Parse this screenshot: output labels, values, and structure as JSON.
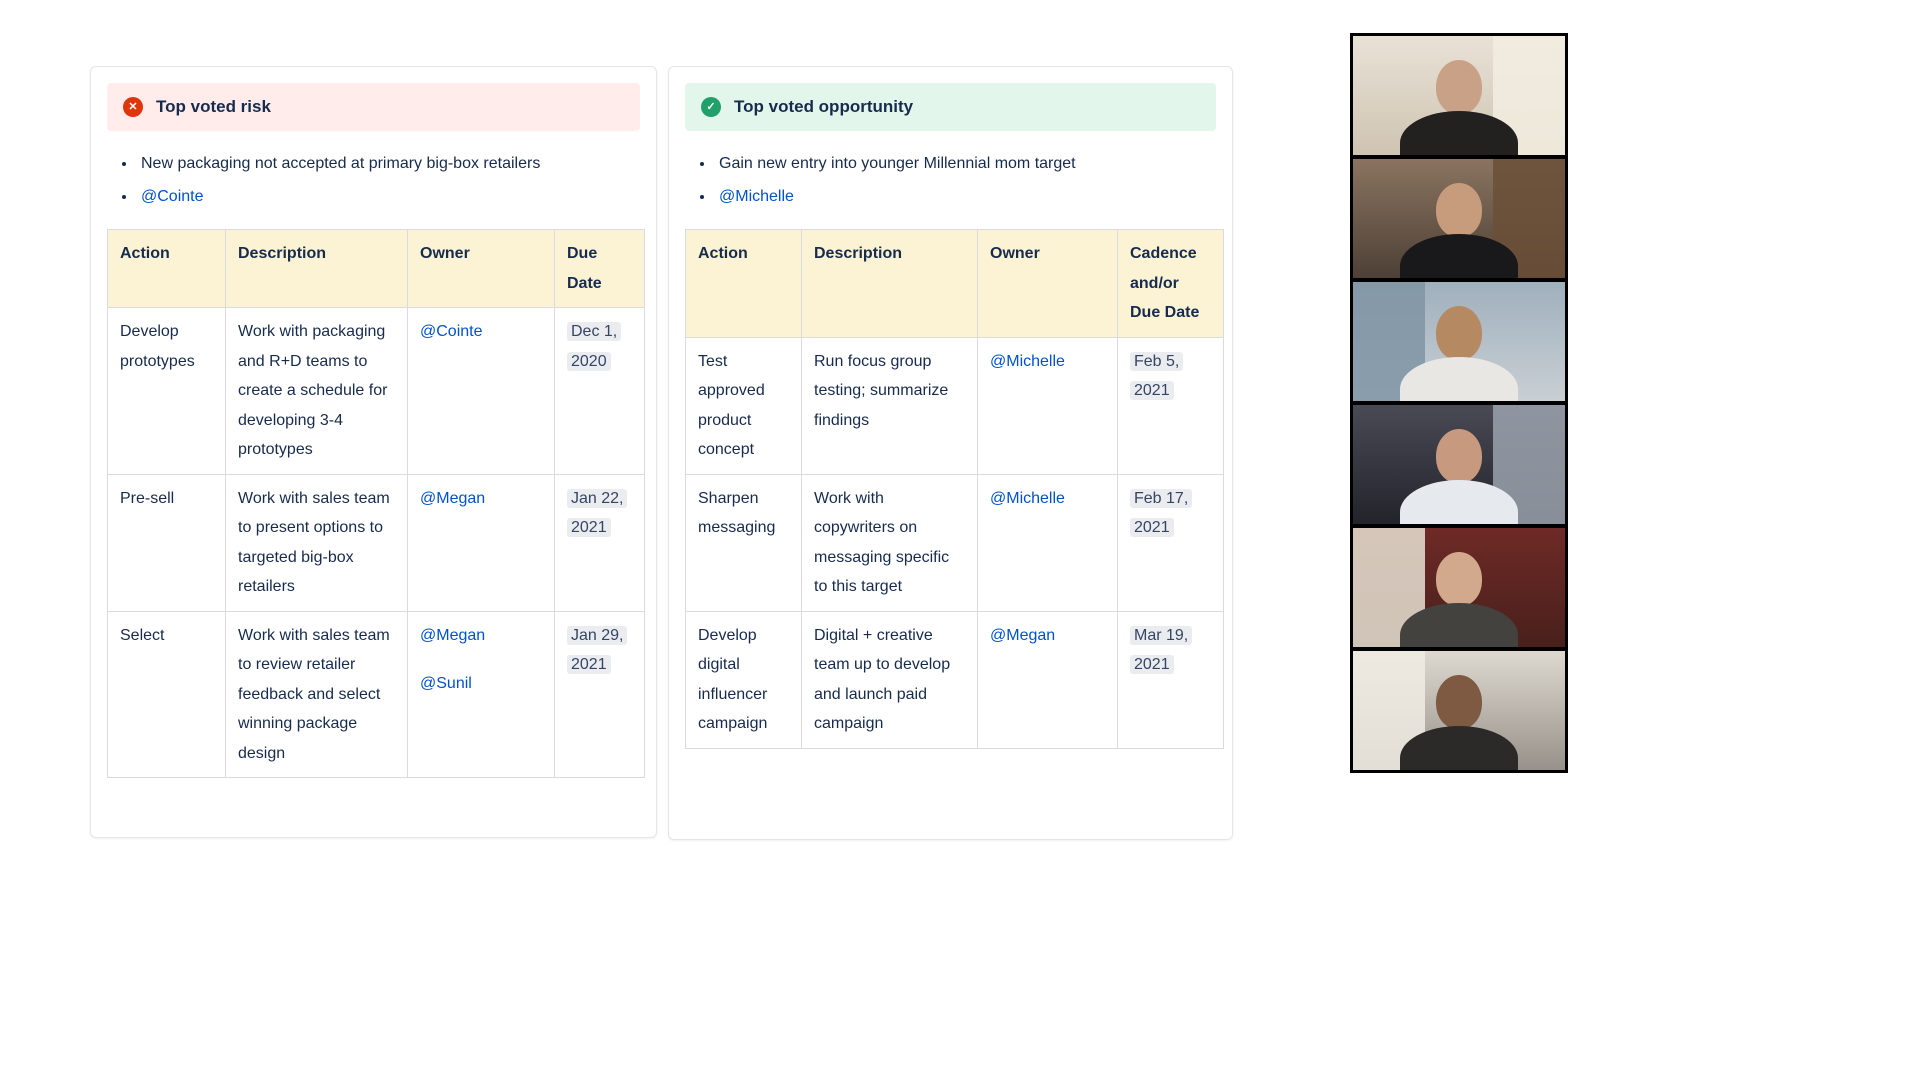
{
  "colors": {
    "link": "#0052cc",
    "text": "#172b4d",
    "table_header_bg": "#fcf3d4",
    "date_lozenge_bg": "#ebecf0"
  },
  "risk_panel": {
    "title": "Top voted risk",
    "icon_glyph": "✕",
    "icon_color": "#de350b",
    "banner_bg": "#ffeceb",
    "bullet": "New packaging not accepted at primary big-box retailers",
    "mention": "@Cointe",
    "table": {
      "headers": [
        "Action",
        "Description",
        "Owner",
        "Due Date"
      ],
      "rows": [
        {
          "action": "Develop prototypes",
          "description": "Work with packaging and R+D teams to create a schedule for developing 3-4 prototypes",
          "owners": [
            "@Cointe"
          ],
          "due": "Dec 1, 2020"
        },
        {
          "action": "Pre-sell",
          "description": "Work with sales team to present options to targeted big-box retailers",
          "owners": [
            "@Megan"
          ],
          "due": "Jan 22, 2021"
        },
        {
          "action": "Select",
          "description": "Work with sales team to review retailer feedback and select winning package design",
          "owners": [
            "@Megan",
            "@Sunil"
          ],
          "due": "Jan 29, 2021"
        }
      ]
    }
  },
  "opportunity_panel": {
    "title": "Top voted opportunity",
    "icon_glyph": "✓",
    "icon_color": "#22a06b",
    "banner_bg": "#e3f6ec",
    "bullet": "Gain new entry into younger Millennial mom target",
    "mention": "@Michelle",
    "table": {
      "headers": [
        "Action",
        "Description",
        "Owner",
        "Cadence and/or Due Date"
      ],
      "rows": [
        {
          "action": "Test approved product concept",
          "description": "Run focus group testing; summarize findings",
          "owners": [
            "@Michelle"
          ],
          "due": "Feb 5, 2021"
        },
        {
          "action": "Sharpen messaging",
          "description": "Work with copywriters on messaging specific to this target",
          "owners": [
            "@Michelle"
          ],
          "due": "Feb 17, 2021"
        },
        {
          "action": "Develop digital influencer campaign",
          "description": "Digital + creative team up to develop and launch paid campaign",
          "owners": [
            "@Megan"
          ],
          "due": "Mar 19, 2021"
        }
      ]
    }
  },
  "video_strip": {
    "participants": [
      {
        "bg_top": "#e8e2d6",
        "bg_bottom": "#cfc4b2",
        "accent": "#f3ede2",
        "accent_side": "right",
        "shirt": "#23211f",
        "skin": "#c9a186"
      },
      {
        "bg_top": "#8a7460",
        "bg_bottom": "#4e4036",
        "accent": "#6b4f37",
        "accent_side": "right",
        "shirt": "#19191b",
        "skin": "#c79c7d"
      },
      {
        "bg_top": "#9fb0bd",
        "bg_bottom": "#c9cfd4",
        "accent": "#7f94a4",
        "accent_side": "left",
        "shirt": "#e9e7e3",
        "skin": "#b58a63"
      },
      {
        "bg_top": "#4a4a55",
        "bg_bottom": "#23232b",
        "accent": "#9aa2ad",
        "accent_side": "right",
        "shirt": "#e6eaee",
        "skin": "#c79a80"
      },
      {
        "bg_top": "#6e2a26",
        "bg_bottom": "#49201c",
        "accent": "#e8e2d4",
        "accent_side": "left",
        "shirt": "#44423f",
        "skin": "#d2a98c"
      },
      {
        "bg_top": "#ded9d0",
        "bg_bottom": "#97918a",
        "accent": "#f0ece4",
        "accent_side": "left",
        "shirt": "#2b2a28",
        "skin": "#7d5a41"
      }
    ]
  }
}
